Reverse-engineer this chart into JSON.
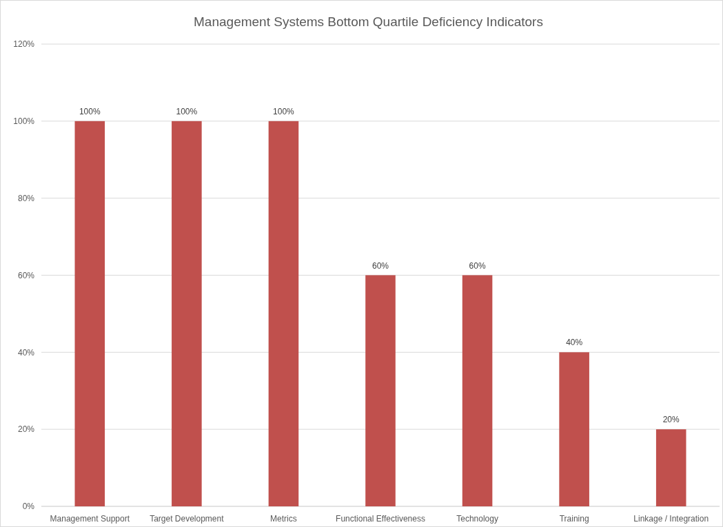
{
  "chart_data": {
    "type": "bar",
    "title": "Management Systems Bottom Quartile Deficiency Indicators",
    "categories": [
      "Management Support",
      "Target Development",
      "Metrics",
      "Functional Effectiveness",
      "Technology",
      "Training",
      "Linkage / Integration"
    ],
    "values": [
      100,
      100,
      100,
      60,
      60,
      40,
      20
    ],
    "value_labels": [
      "100%",
      "100%",
      "100%",
      "60%",
      "60%",
      "40%",
      "20%"
    ],
    "color": "#c0504d",
    "ylim": [
      0,
      120
    ],
    "yticks": [
      {
        "value": 0,
        "label": "0%"
      },
      {
        "value": 20,
        "label": "20%"
      },
      {
        "value": 40,
        "label": "40%"
      },
      {
        "value": 60,
        "label": "60%"
      },
      {
        "value": 80,
        "label": "80%"
      },
      {
        "value": 100,
        "label": "100%"
      },
      {
        "value": 120,
        "label": "120%"
      }
    ],
    "grid": "y"
  }
}
